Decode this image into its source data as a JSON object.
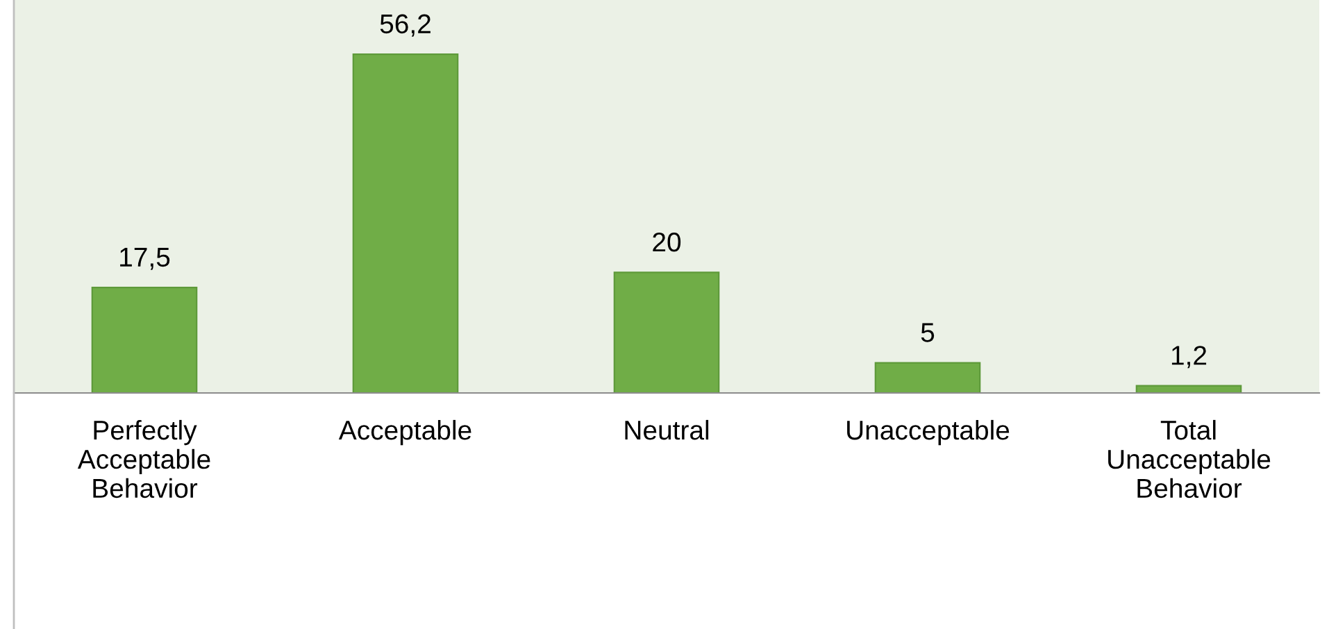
{
  "chart_data": {
    "type": "bar",
    "categories": [
      "Perfectly Acceptable Behavior",
      "Acceptable",
      "Neutral",
      "Unacceptable",
      "Total Unacceptable Behavior"
    ],
    "values": [
      17.5,
      56.2,
      20,
      5,
      1.2
    ],
    "value_labels": [
      "17,5",
      "56,2",
      "20",
      "5",
      "1,2"
    ],
    "color": "#70ad47",
    "grid": false,
    "legend": false
  }
}
